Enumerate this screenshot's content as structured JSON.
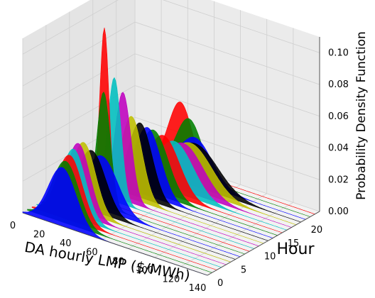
{
  "chart_data": {
    "type": "3d-ridge",
    "xlabel": "DA hourly LMP ($/MWh)",
    "ylabel": "Hour",
    "zlabel": "Probability Density Function",
    "x_ticks": [
      0,
      20,
      40,
      60,
      80,
      100,
      120,
      140
    ],
    "y_ticks": [
      0,
      5,
      10,
      15,
      20
    ],
    "z_ticks": [
      "0.00",
      "0.02",
      "0.04",
      "0.06",
      "0.08",
      "0.10"
    ],
    "xlim": [
      0,
      140
    ],
    "ylim": [
      0,
      24
    ],
    "zlim": [
      0,
      0.11
    ],
    "color_cycle": [
      "#0000ff",
      "#008000",
      "#ff0000",
      "#00bfbf",
      "#bf00bf",
      "#bfbf00",
      "#000000"
    ],
    "series": [
      {
        "hour": 0,
        "mean": 30,
        "std": 10.5,
        "peak": 0.037
      },
      {
        "hour": 1,
        "mean": 29,
        "std": 10,
        "peak": 0.039
      },
      {
        "hour": 2,
        "mean": 28.5,
        "std": 9.5,
        "peak": 0.041
      },
      {
        "hour": 3,
        "mean": 28,
        "std": 9,
        "peak": 0.043
      },
      {
        "hour": 4,
        "mean": 28,
        "std": 8.8,
        "peak": 0.045
      },
      {
        "hour": 5,
        "mean": 28.5,
        "std": 9,
        "peak": 0.044
      },
      {
        "hour": 6,
        "mean": 31,
        "std": 10.5,
        "peak": 0.038
      },
      {
        "hour": 7,
        "mean": 35,
        "std": 12,
        "peak": 0.034
      },
      {
        "hour": 8,
        "mean": 33,
        "std": 5,
        "peak": 0.072
      },
      {
        "hour": 9,
        "mean": 30,
        "std": 3.5,
        "peak": 0.11
      },
      {
        "hour": 10,
        "mean": 34,
        "std": 5,
        "peak": 0.078
      },
      {
        "hour": 11,
        "mean": 37,
        "std": 6,
        "peak": 0.068
      },
      {
        "hour": 12,
        "mean": 40,
        "std": 8,
        "peak": 0.052
      },
      {
        "hour": 13,
        "mean": 43,
        "std": 9,
        "peak": 0.047
      },
      {
        "hour": 14,
        "mean": 45,
        "std": 10,
        "peak": 0.043
      },
      {
        "hour": 15,
        "mean": 46,
        "std": 11,
        "peak": 0.04
      },
      {
        "hour": 16,
        "mean": 50,
        "std": 12,
        "peak": 0.036
      },
      {
        "hour": 17,
        "mean": 55,
        "std": 14,
        "peak": 0.032
      },
      {
        "hour": 18,
        "mean": 58,
        "std": 15,
        "peak": 0.03
      },
      {
        "hour": 19,
        "mean": 60,
        "std": 16,
        "peak": 0.029
      },
      {
        "hour": 20,
        "mean": 60,
        "std": 17,
        "peak": 0.027
      },
      {
        "hour": 21,
        "mean": 56,
        "std": 13,
        "peak": 0.028
      },
      {
        "hour": 22,
        "mean": 48,
        "std": 10,
        "peak": 0.036
      },
      {
        "hour": 23,
        "mean": 38,
        "std": 9,
        "peak": 0.042
      }
    ]
  }
}
